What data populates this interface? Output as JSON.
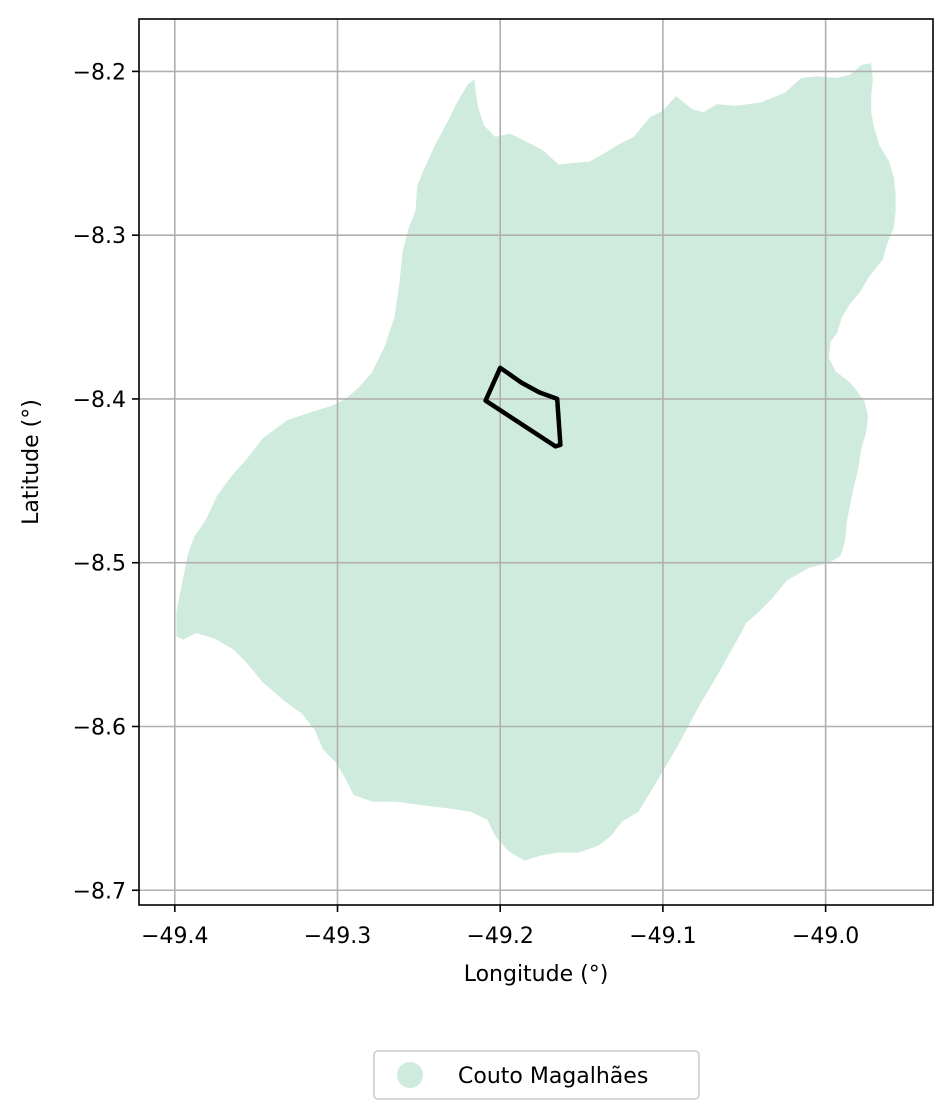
{
  "chart_data": {
    "type": "map",
    "xlabel": "Longitude (°)",
    "ylabel": "Latitude (°)",
    "xlim": [
      -49.422,
      -48.934
    ],
    "ylim": [
      -8.709,
      -8.168
    ],
    "xticks": [
      -49.4,
      -49.3,
      -49.2,
      -49.1,
      -49.0
    ],
    "xtick_labels": [
      "−49.4",
      "−49.3",
      "−49.2",
      "−49.1",
      "−49.0"
    ],
    "yticks": [
      -8.2,
      -8.3,
      -8.4,
      -8.5,
      -8.6,
      -8.7
    ],
    "ytick_labels": [
      "−8.2",
      "−8.3",
      "−8.4",
      "−8.5",
      "−8.6",
      "−8.7"
    ],
    "grid": true,
    "legend": {
      "placement": "bottom-center, below axes",
      "entries": [
        {
          "label": "Couto Magalhães",
          "color": "#cfebdd",
          "marker": "circle"
        }
      ]
    },
    "municipality": {
      "name": "Couto Magalhães",
      "fill_color": "#cfebdd",
      "boundary": [
        [
          -49.399,
          -8.545
        ],
        [
          -49.399,
          -8.53
        ],
        [
          -49.396,
          -8.515
        ],
        [
          -49.392,
          -8.495
        ],
        [
          -49.388,
          -8.484
        ],
        [
          -49.381,
          -8.474
        ],
        [
          -49.374,
          -8.459
        ],
        [
          -49.365,
          -8.447
        ],
        [
          -49.356,
          -8.437
        ],
        [
          -49.346,
          -8.424
        ],
        [
          -49.331,
          -8.413
        ],
        [
          -49.316,
          -8.408
        ],
        [
          -49.303,
          -8.404
        ],
        [
          -49.295,
          -8.4
        ],
        [
          -49.287,
          -8.393
        ],
        [
          -49.279,
          -8.384
        ],
        [
          -49.271,
          -8.368
        ],
        [
          -49.265,
          -8.35
        ],
        [
          -49.262,
          -8.33
        ],
        [
          -49.26,
          -8.31
        ],
        [
          -49.256,
          -8.295
        ],
        [
          -49.252,
          -8.285
        ],
        [
          -49.251,
          -8.27
        ],
        [
          -49.247,
          -8.26
        ],
        [
          -49.24,
          -8.245
        ],
        [
          -49.232,
          -8.23
        ],
        [
          -49.226,
          -8.218
        ],
        [
          -49.22,
          -8.208
        ],
        [
          -49.216,
          -8.205
        ],
        [
          -49.214,
          -8.22
        ],
        [
          -49.21,
          -8.233
        ],
        [
          -49.203,
          -8.24
        ],
        [
          -49.194,
          -8.238
        ],
        [
          -49.184,
          -8.243
        ],
        [
          -49.174,
          -8.248
        ],
        [
          -49.164,
          -8.257
        ],
        [
          -49.156,
          -8.256
        ],
        [
          -49.145,
          -8.255
        ],
        [
          -49.136,
          -8.25
        ],
        [
          -49.128,
          -8.245
        ],
        [
          -49.118,
          -8.24
        ],
        [
          -49.108,
          -8.228
        ],
        [
          -49.1,
          -8.224
        ],
        [
          -49.092,
          -8.215
        ],
        [
          -49.082,
          -8.223
        ],
        [
          -49.075,
          -8.225
        ],
        [
          -49.067,
          -8.22
        ],
        [
          -49.055,
          -8.221
        ],
        [
          -49.04,
          -8.219
        ],
        [
          -49.025,
          -8.213
        ],
        [
          -49.015,
          -8.204
        ],
        [
          -49.005,
          -8.203
        ],
        [
          -48.993,
          -8.204
        ],
        [
          -48.985,
          -8.202
        ],
        [
          -48.978,
          -8.196
        ],
        [
          -48.972,
          -8.195
        ],
        [
          -48.971,
          -8.205
        ],
        [
          -48.972,
          -8.215
        ],
        [
          -48.972,
          -8.225
        ],
        [
          -48.97,
          -8.235
        ],
        [
          -48.967,
          -8.245
        ],
        [
          -48.961,
          -8.255
        ],
        [
          -48.958,
          -8.265
        ],
        [
          -48.957,
          -8.275
        ],
        [
          -48.957,
          -8.285
        ],
        [
          -48.958,
          -8.295
        ],
        [
          -48.962,
          -8.305
        ],
        [
          -48.965,
          -8.315
        ],
        [
          -48.973,
          -8.325
        ],
        [
          -48.979,
          -8.335
        ],
        [
          -48.985,
          -8.342
        ],
        [
          -48.99,
          -8.35
        ],
        [
          -48.993,
          -8.36
        ],
        [
          -48.997,
          -8.365
        ],
        [
          -48.998,
          -8.375
        ],
        [
          -48.994,
          -8.383
        ],
        [
          -48.985,
          -8.39
        ],
        [
          -48.98,
          -8.396
        ],
        [
          -48.976,
          -8.402
        ],
        [
          -48.974,
          -8.41
        ],
        [
          -48.975,
          -8.42
        ],
        [
          -48.978,
          -8.43
        ],
        [
          -48.98,
          -8.443
        ],
        [
          -48.983,
          -8.455
        ],
        [
          -48.985,
          -8.465
        ],
        [
          -48.987,
          -8.475
        ],
        [
          -48.988,
          -8.487
        ],
        [
          -48.991,
          -8.496
        ],
        [
          -48.998,
          -8.5
        ],
        [
          -49.01,
          -8.503
        ],
        [
          -49.024,
          -8.511
        ],
        [
          -49.033,
          -8.522
        ],
        [
          -49.041,
          -8.53
        ],
        [
          -49.049,
          -8.537
        ],
        [
          -49.052,
          -8.543
        ],
        [
          -49.065,
          -8.566
        ],
        [
          -49.078,
          -8.588
        ],
        [
          -49.091,
          -8.612
        ],
        [
          -49.104,
          -8.634
        ],
        [
          -49.115,
          -8.652
        ],
        [
          -49.125,
          -8.658
        ],
        [
          -49.132,
          -8.667
        ],
        [
          -49.14,
          -8.673
        ],
        [
          -49.152,
          -8.677
        ],
        [
          -49.165,
          -8.677
        ],
        [
          -49.176,
          -8.679
        ],
        [
          -49.185,
          -8.682
        ],
        [
          -49.195,
          -8.676
        ],
        [
          -49.203,
          -8.667
        ],
        [
          -49.208,
          -8.657
        ],
        [
          -49.218,
          -8.652
        ],
        [
          -49.232,
          -8.65
        ],
        [
          -49.248,
          -8.648
        ],
        [
          -49.264,
          -8.646
        ],
        [
          -49.278,
          -8.646
        ],
        [
          -49.29,
          -8.642
        ],
        [
          -49.295,
          -8.632
        ],
        [
          -49.301,
          -8.622
        ],
        [
          -49.309,
          -8.614
        ],
        [
          -49.314,
          -8.602
        ],
        [
          -49.322,
          -8.592
        ],
        [
          -49.332,
          -8.585
        ],
        [
          -49.346,
          -8.573
        ],
        [
          -49.355,
          -8.562
        ],
        [
          -49.364,
          -8.553
        ],
        [
          -49.376,
          -8.546
        ],
        [
          -49.387,
          -8.543
        ],
        [
          -49.395,
          -8.547
        ]
      ]
    },
    "highlight_polygon": {
      "stroke_color": "#000000",
      "points": [
        [
          -49.2,
          -8.381
        ],
        [
          -49.187,
          -8.39
        ],
        [
          -49.176,
          -8.396
        ],
        [
          -49.165,
          -8.4
        ],
        [
          -49.163,
          -8.428
        ],
        [
          -49.166,
          -8.429
        ],
        [
          -49.209,
          -8.401
        ]
      ]
    }
  }
}
